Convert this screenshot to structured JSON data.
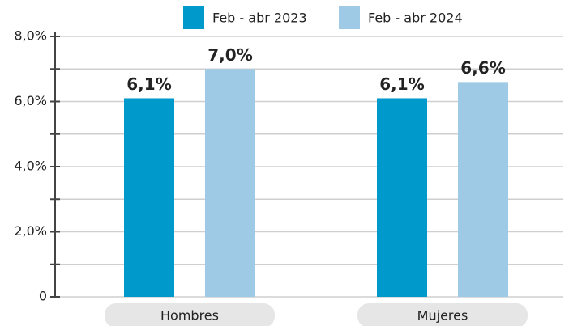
{
  "chart_data": {
    "type": "bar",
    "categories": [
      "Hombres",
      "Mujeres"
    ],
    "series": [
      {
        "name": "Feb - abr 2023",
        "color": "#0099cc",
        "values": [
          6.1,
          6.1
        ],
        "value_labels": [
          "6,1%",
          "6,1%"
        ]
      },
      {
        "name": "Feb - abr 2024",
        "color": "#9ecae6",
        "values": [
          7.0,
          6.6
        ],
        "value_labels": [
          "7,0%",
          "6,6%"
        ]
      }
    ],
    "ylim": [
      0,
      8
    ],
    "yticks": [
      0,
      {
        "value": 2,
        "label": "2,0%"
      },
      {
        "value": 4,
        "label": "4,0%"
      },
      {
        "value": 6,
        "label": "6,0%"
      },
      {
        "value": 8,
        "label": "8,0%"
      }
    ],
    "minor_yticks": [
      1,
      3,
      5,
      7
    ],
    "grid": true,
    "legend": "top"
  }
}
